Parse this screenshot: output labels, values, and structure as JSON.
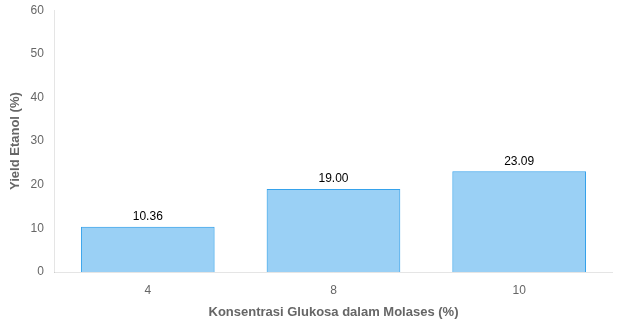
{
  "chart_data": {
    "type": "bar",
    "categories": [
      "4",
      "8",
      "10"
    ],
    "values": [
      10.36,
      19.0,
      23.09
    ],
    "value_labels": [
      "10.36",
      "19.00",
      "23.09"
    ],
    "xlabel": "Konsentrasi Glukosa dalam Molases (%)",
    "ylabel": "Yield Etanol (%)",
    "ylim": [
      0,
      60
    ],
    "yticks": [
      0,
      10,
      20,
      30,
      40,
      50,
      60
    ],
    "grid": false,
    "data_labels": true
  }
}
